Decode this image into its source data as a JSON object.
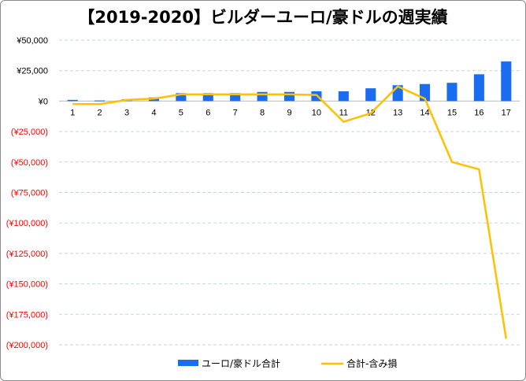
{
  "chart_data": {
    "type": "bar+line",
    "title": "【2019-2020】ビルダーユーロ/豪ドルの週実績",
    "categories": [
      "1",
      "2",
      "3",
      "4",
      "5",
      "6",
      "7",
      "8",
      "9",
      "10",
      "11",
      "12",
      "13",
      "14",
      "15",
      "16",
      "17"
    ],
    "series": [
      {
        "name": "ユーロ/豪ドル合計",
        "type": "bar",
        "color": "#1a6cf0",
        "values": [
          1000,
          500,
          1500,
          3000,
          6500,
          6500,
          6500,
          7500,
          7500,
          8000,
          8000,
          10500,
          13000,
          14000,
          15000,
          22000,
          32500
        ]
      },
      {
        "name": "合計-含み損",
        "type": "line",
        "color": "#ffc000",
        "values": [
          -2500,
          -2500,
          1000,
          2000,
          5500,
          5500,
          5500,
          5500,
          5500,
          5000,
          -17000,
          -10000,
          12000,
          2000,
          -50000,
          -56000,
          -195000
        ]
      }
    ],
    "y_ticks": [
      "¥50,000",
      "¥25,000",
      "¥0",
      "(¥25,000)",
      "(¥50,000)",
      "(¥75,000)",
      "(¥100,000)",
      "(¥125,000)",
      "(¥150,000)",
      "(¥175,000)",
      "(¥200,000)"
    ],
    "ylim": [
      -200000,
      50000
    ],
    "negative_tick_color": "#ff0000",
    "grid": true,
    "legend_position": "bottom"
  }
}
